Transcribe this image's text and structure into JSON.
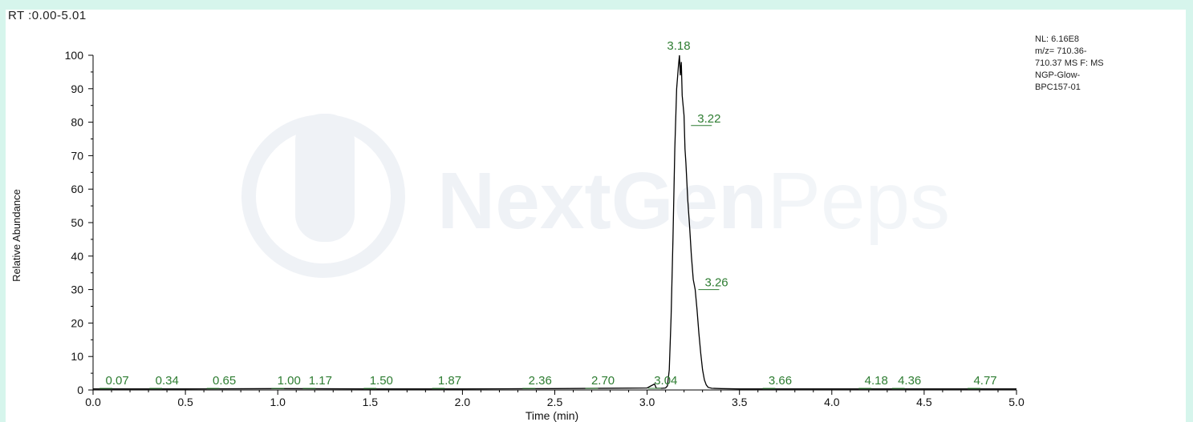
{
  "header": {
    "rt_range": "RT :0.00-5.01"
  },
  "info": {
    "lines": [
      "NL: 6.16E8",
      "m/z= 710.36-",
      "710.37 MS  F: MS",
      "NGP-Glow-",
      "BPC157-01"
    ]
  },
  "watermark": {
    "brand_bold": "NextGen",
    "brand_light": "Peps"
  },
  "colors": {
    "background": "#d6f5ec",
    "trace": "#000000",
    "peak_label": "#2e7d32",
    "axis": "#000000",
    "watermark": "#eef1f6"
  },
  "chart_data": {
    "type": "line",
    "xlabel": "Time (min)",
    "ylabel": "Relative Abundance",
    "xlim": [
      0,
      5.0
    ],
    "ylim": [
      0,
      100
    ],
    "xticks": [
      "0.0",
      "0.5",
      "1.0",
      "1.5",
      "2.0",
      "2.5",
      "3.0",
      "3.5",
      "4.0",
      "4.5",
      "5.0"
    ],
    "yticks": [
      "0",
      "10",
      "20",
      "30",
      "40",
      "50",
      "60",
      "70",
      "80",
      "90",
      "100"
    ],
    "grid": false,
    "series": [
      {
        "x": [
          0.0,
          0.5,
          1.0,
          1.5,
          2.0,
          2.5,
          3.0,
          3.02,
          3.04,
          3.05,
          3.06,
          3.08,
          3.1,
          3.11,
          3.12,
          3.13,
          3.14,
          3.15,
          3.16,
          3.17,
          3.175,
          3.18,
          3.185,
          3.19,
          3.2,
          3.205,
          3.21,
          3.22,
          3.23,
          3.24,
          3.25,
          3.26,
          3.27,
          3.28,
          3.29,
          3.3,
          3.31,
          3.32,
          3.33,
          3.35,
          3.4,
          3.5,
          4.0,
          4.5,
          5.0
        ],
        "y": [
          0.3,
          0.3,
          0.4,
          0.3,
          0.3,
          0.4,
          0.6,
          1.2,
          1.8,
          0.5,
          0.5,
          0.5,
          0.6,
          1.2,
          6,
          22,
          45,
          72,
          90,
          97,
          100,
          94,
          98,
          88,
          82,
          72,
          68,
          57,
          49,
          40,
          33,
          30,
          24,
          17,
          11,
          6,
          3,
          1.5,
          0.8,
          0.5,
          0.4,
          0.3,
          0.3,
          0.3,
          0.3
        ]
      }
    ],
    "peak_labels": [
      {
        "x": 0.07,
        "y": 0.3,
        "label": "0.07"
      },
      {
        "x": 0.34,
        "y": 0.3,
        "label": "0.34"
      },
      {
        "x": 0.65,
        "y": 0.3,
        "label": "0.65"
      },
      {
        "x": 1.0,
        "y": 0.4,
        "label": "1.00"
      },
      {
        "x": 1.17,
        "y": 0.3,
        "label": "1.17"
      },
      {
        "x": 1.5,
        "y": 0.3,
        "label": "1.50"
      },
      {
        "x": 1.87,
        "y": 0.3,
        "label": "1.87"
      },
      {
        "x": 2.36,
        "y": 0.3,
        "label": "2.36"
      },
      {
        "x": 2.7,
        "y": 0.4,
        "label": "2.70"
      },
      {
        "x": 3.04,
        "y": 1.8,
        "label": "3.04"
      },
      {
        "x": 3.18,
        "y": 100,
        "label": "3.18"
      },
      {
        "x": 3.22,
        "y": 79,
        "label": "3.22"
      },
      {
        "x": 3.26,
        "y": 30,
        "label": "3.26"
      },
      {
        "x": 3.66,
        "y": 0.3,
        "label": "3.66"
      },
      {
        "x": 4.18,
        "y": 0.3,
        "label": "4.18"
      },
      {
        "x": 4.36,
        "y": 0.3,
        "label": "4.36"
      },
      {
        "x": 4.77,
        "y": 0.3,
        "label": "4.77"
      }
    ]
  }
}
